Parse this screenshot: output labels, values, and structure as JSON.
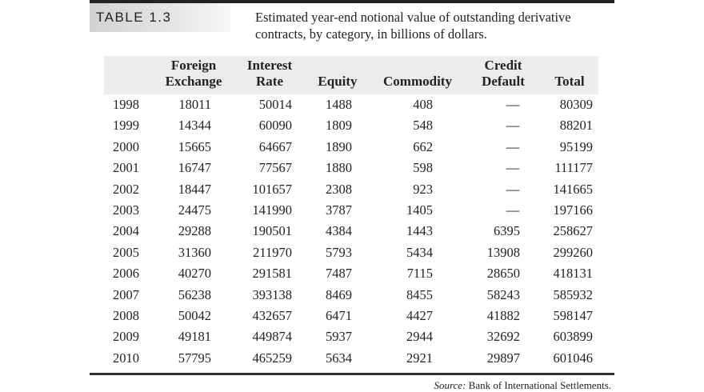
{
  "table": {
    "tag": "TABLE 1.3",
    "caption": "Estimated year-end notional value of outstanding derivative contracts, by category, in billions of dollars.",
    "columns": [
      {
        "line1": "",
        "line2": ""
      },
      {
        "line1": "Foreign",
        "line2": "Exchange"
      },
      {
        "line1": "Interest",
        "line2": "Rate"
      },
      {
        "line1": "",
        "line2": "Equity"
      },
      {
        "line1": "",
        "line2": "Commodity"
      },
      {
        "line1": "Credit",
        "line2": "Default"
      },
      {
        "line1": "",
        "line2": "Total"
      }
    ],
    "rows": [
      [
        "1998",
        "18011",
        "50014",
        "1488",
        "408",
        "—",
        "80309"
      ],
      [
        "1999",
        "14344",
        "60090",
        "1809",
        "548",
        "—",
        "88201"
      ],
      [
        "2000",
        "15665",
        "64667",
        "1890",
        "662",
        "—",
        "95199"
      ],
      [
        "2001",
        "16747",
        "77567",
        "1880",
        "598",
        "—",
        "111177"
      ],
      [
        "2002",
        "18447",
        "101657",
        "2308",
        "923",
        "—",
        "141665"
      ],
      [
        "2003",
        "24475",
        "141990",
        "3787",
        "1405",
        "—",
        "197166"
      ],
      [
        "2004",
        "29288",
        "190501",
        "4384",
        "1443",
        "6395",
        "258627"
      ],
      [
        "2005",
        "31360",
        "211970",
        "5793",
        "5434",
        "13908",
        "299260"
      ],
      [
        "2006",
        "40270",
        "291581",
        "7487",
        "7115",
        "28650",
        "418131"
      ],
      [
        "2007",
        "56238",
        "393138",
        "8469",
        "8455",
        "58243",
        "585932"
      ],
      [
        "2008",
        "50042",
        "432657",
        "6471",
        "4427",
        "41882",
        "598147"
      ],
      [
        "2009",
        "49181",
        "449874",
        "5937",
        "2944",
        "32692",
        "603899"
      ],
      [
        "2010",
        "57795",
        "465259",
        "5634",
        "2921",
        "29897",
        "601046"
      ]
    ],
    "source_label": "Source:",
    "source_text": "Bank of International Settlements."
  }
}
